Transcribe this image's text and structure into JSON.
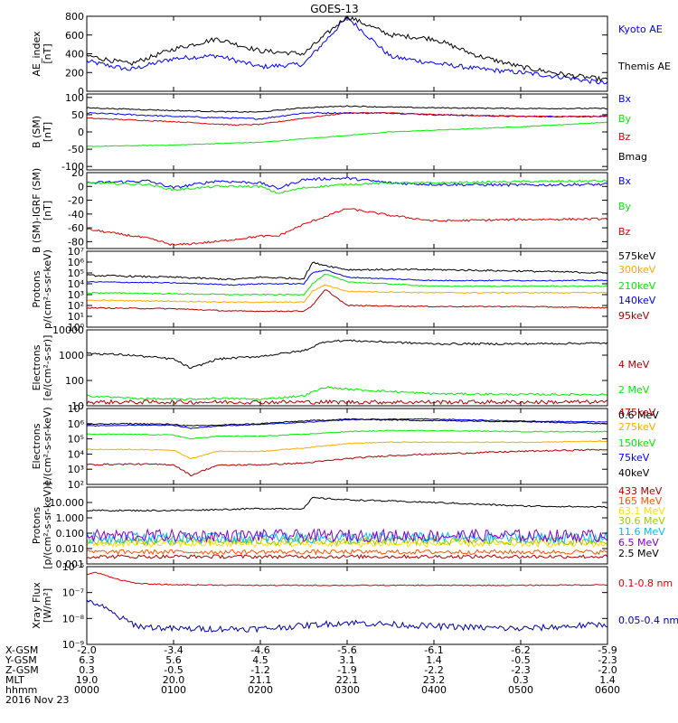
{
  "title": "GOES-13",
  "colors": {
    "black": "#000000",
    "blue": "#0000ff",
    "red": "#dd0000",
    "green": "#00ee00",
    "orange": "#ffaa00",
    "darkred": "#aa0000",
    "cyan": "#00bbff",
    "purple": "#8800cc",
    "gold": "#ffdd00",
    "darkorange": "#ff5500",
    "olive": "#99cc00",
    "navy": "#0000aa"
  },
  "chart_data": [
    {
      "type": "line",
      "scale": "linear",
      "ylim": [
        0,
        800
      ],
      "ylabel": [
        "AE_index",
        "[nT]"
      ],
      "yticks": [
        {
          "v": 0,
          "t": "0"
        },
        {
          "v": 200,
          "t": "200"
        },
        {
          "v": 400,
          "t": "400"
        },
        {
          "v": 600,
          "t": "600"
        },
        {
          "v": 800,
          "t": "800"
        }
      ],
      "x": [
        0,
        0.5,
        1,
        1.5,
        2,
        2.5,
        3,
        3.5,
        4,
        4.5,
        5,
        5.5,
        6
      ],
      "series": [
        {
          "name": "Kyoto AE",
          "color": "#0000ff",
          "values": [
            320,
            230,
            350,
            380,
            260,
            290,
            790,
            370,
            300,
            240,
            200,
            150,
            80
          ],
          "noise": 25
        },
        {
          "name": "Themis AE",
          "color": "#000000",
          "values": [
            380,
            290,
            450,
            560,
            430,
            400,
            800,
            600,
            560,
            380,
            260,
            180,
            120
          ],
          "noise": 25
        }
      ]
    },
    {
      "type": "line",
      "scale": "linear",
      "ylim": [
        -110,
        110
      ],
      "ylabel": [
        "B (SM)",
        "[nT]"
      ],
      "yticks": [
        {
          "v": -100,
          "t": "-100"
        },
        {
          "v": -50,
          "t": "-50"
        },
        {
          "v": 0,
          "t": "0"
        },
        {
          "v": 50,
          "t": "50"
        },
        {
          "v": 100,
          "t": "100"
        }
      ],
      "x": [
        0,
        1,
        1.7,
        2,
        2.5,
        3,
        3.5,
        4,
        5,
        6
      ],
      "series": [
        {
          "name": "Bx",
          "color": "#0000ff",
          "values": [
            55,
            45,
            40,
            38,
            55,
            55,
            55,
            50,
            45,
            45
          ],
          "noise": 2
        },
        {
          "name": "By",
          "color": "#00ee00",
          "values": [
            -42,
            -38,
            -32,
            -30,
            -20,
            -10,
            0,
            5,
            15,
            28
          ],
          "noise": 1
        },
        {
          "name": "Bz",
          "color": "#dd0000",
          "values": [
            40,
            30,
            20,
            22,
            40,
            55,
            55,
            50,
            45,
            45
          ],
          "noise": 1.5
        },
        {
          "name": "Bmag",
          "color": "#000000",
          "values": [
            70,
            62,
            58,
            58,
            70,
            75,
            72,
            70,
            68,
            68
          ],
          "noise": 1.5
        }
      ]
    },
    {
      "type": "line",
      "scale": "linear",
      "ylim": [
        -90,
        20
      ],
      "ylabel": [
        "B (SM)-IGRF (SM)",
        "[nT]"
      ],
      "yticks": [
        {
          "v": -80,
          "t": "-80"
        },
        {
          "v": -60,
          "t": "-60"
        },
        {
          "v": -40,
          "t": "-40"
        },
        {
          "v": -20,
          "t": "-20"
        },
        {
          "v": 0,
          "t": "0"
        },
        {
          "v": 20,
          "t": "20"
        }
      ],
      "x": [
        0,
        0.7,
        1,
        1.5,
        2,
        2.2,
        2.5,
        3,
        3.5,
        4,
        5,
        6
      ],
      "series": [
        {
          "name": "Bx",
          "color": "#0000ff",
          "values": [
            5,
            8,
            -2,
            8,
            5,
            -3,
            10,
            12,
            5,
            3,
            2,
            3
          ],
          "noise": 2
        },
        {
          "name": "By",
          "color": "#00ee00",
          "values": [
            5,
            3,
            -5,
            0,
            0,
            -10,
            -2,
            3,
            5,
            5,
            7,
            8
          ],
          "noise": 1.5
        },
        {
          "name": "Bz",
          "color": "#dd0000",
          "values": [
            -62,
            -75,
            -85,
            -80,
            -72,
            -72,
            -55,
            -32,
            -42,
            -50,
            -48,
            -47
          ],
          "noise": 1.5
        }
      ]
    },
    {
      "type": "line",
      "scale": "log",
      "ylim": [
        1,
        10000000
      ],
      "ylabel": [
        "Protons",
        "p/(cm²-s-sr-keV)"
      ],
      "yticks": [
        {
          "v": 1,
          "t": "10⁰"
        },
        {
          "v": 10,
          "t": "10¹"
        },
        {
          "v": 100,
          "t": "10²"
        },
        {
          "v": 1000,
          "t": "10³"
        },
        {
          "v": 10000,
          "t": "10⁴"
        },
        {
          "v": 100000,
          "t": "10⁵"
        },
        {
          "v": 1000000,
          "t": "10⁶"
        },
        {
          "v": 10000000,
          "t": "10⁷"
        }
      ],
      "x": [
        0,
        1,
        1.7,
        2,
        2.5,
        2.6,
        2.75,
        3,
        4,
        5,
        6
      ],
      "series": [
        {
          "name": "575keV",
          "color": "#000000",
          "values": [
            60000,
            40000,
            25000,
            40000,
            30000,
            900000,
            500000,
            200000,
            200000,
            150000,
            100000
          ],
          "noise": 0.08
        },
        {
          "name": "300keV",
          "color": "#ffaa00",
          "values": [
            300,
            250,
            200,
            200,
            200,
            2000,
            8000,
            2000,
            1500,
            1500,
            1500
          ],
          "noise": 0.05
        },
        {
          "name": "210keV",
          "color": "#00ee00",
          "values": [
            1500,
            1200,
            1000,
            1000,
            1000,
            10000,
            80000,
            15000,
            6000,
            6000,
            6000
          ],
          "noise": 0.05
        },
        {
          "name": "140keV",
          "color": "#0000ff",
          "values": [
            15000,
            12000,
            8000,
            10000,
            10000,
            100000,
            200000,
            40000,
            20000,
            20000,
            20000
          ],
          "noise": 0.05
        },
        {
          "name": "95keV",
          "color": "#aa0000",
          "values": [
            60,
            50,
            30,
            30,
            30,
            100,
            3000,
            100,
            80,
            80,
            60
          ],
          "noise": 0.05
        }
      ]
    },
    {
      "type": "line",
      "scale": "log",
      "ylim": [
        10,
        10000
      ],
      "ylabel": [
        "Electrons",
        "[e/(cm²-s-sr)]"
      ],
      "yticks": [
        {
          "v": 10,
          "t": "10"
        },
        {
          "v": 100,
          "t": "100"
        },
        {
          "v": 1000,
          "t": "1000"
        },
        {
          "v": 10000,
          "t": "10000"
        }
      ],
      "x": [
        0,
        0.5,
        1,
        1.2,
        1.5,
        2,
        2.5,
        2.75,
        3,
        4,
        5,
        6
      ],
      "series": [
        {
          "name": "4 MeV",
          "color": "#aa0000",
          "values": [
            14,
            14,
            14,
            14,
            14,
            14,
            14,
            14,
            14,
            14,
            14,
            14
          ],
          "noise": 0.08
        },
        {
          "name": "2 MeV",
          "color": "#00ee00",
          "values": [
            25,
            20,
            18,
            18,
            20,
            18,
            25,
            55,
            45,
            30,
            28,
            28
          ],
          "noise": 0.04
        },
        {
          "name": "0.6 MeV",
          "color": "#000000",
          "values": [
            1200,
            1000,
            700,
            300,
            700,
            900,
            1500,
            3500,
            3800,
            2800,
            2800,
            3000
          ],
          "noise": 0.04
        }
      ]
    },
    {
      "type": "line",
      "scale": "log",
      "ylim": [
        100,
        10000000
      ],
      "ylabel": [
        "Electrons",
        "e/(cm²-s-sr-keV)"
      ],
      "yticks": [
        {
          "v": 100,
          "t": "10²"
        },
        {
          "v": 1000,
          "t": "10³"
        },
        {
          "v": 10000,
          "t": "10⁴"
        },
        {
          "v": 100000,
          "t": "10⁵"
        },
        {
          "v": 1000000,
          "t": "10⁶"
        },
        {
          "v": 10000000,
          "t": "10⁷"
        }
      ],
      "x": [
        0,
        0.5,
        1,
        1.2,
        1.5,
        2,
        2.5,
        3,
        3.5,
        4,
        5,
        6
      ],
      "series": [
        {
          "name": "475keV",
          "color": "#aa0000",
          "values": [
            2000,
            2200,
            2000,
            400,
            1800,
            2000,
            2500,
            5000,
            8000,
            10000,
            15000,
            20000
          ],
          "noise": 0.05
        },
        {
          "name": "275keV",
          "color": "#ffaa00",
          "values": [
            20000,
            20000,
            18000,
            5000,
            15000,
            15000,
            25000,
            50000,
            60000,
            60000,
            60000,
            70000
          ],
          "noise": 0.03
        },
        {
          "name": "150keV",
          "color": "#00ee00",
          "values": [
            200000,
            200000,
            180000,
            100000,
            150000,
            150000,
            200000,
            300000,
            350000,
            350000,
            300000,
            300000
          ],
          "noise": 0.03
        },
        {
          "name": "75keV",
          "color": "#0000ff",
          "values": [
            700000,
            800000,
            800000,
            500000,
            700000,
            900000,
            1200000,
            1800000,
            2000000,
            2000000,
            1500000,
            1300000
          ],
          "noise": 0.03
        },
        {
          "name": "40keV",
          "color": "#000000",
          "values": [
            900000,
            1000000,
            900000,
            700000,
            800000,
            1000000,
            1500000,
            2000000,
            1800000,
            1600000,
            1400000,
            1000000
          ],
          "noise": 0.04
        }
      ]
    },
    {
      "type": "line",
      "scale": "log",
      "ylim": [
        0.001,
        100
      ],
      "ylabel": [
        "Protons",
        "[p/(cm²-s-sr-keV)]"
      ],
      "yticks": [
        {
          "v": 0.001,
          "t": "0.001"
        },
        {
          "v": 0.01,
          "t": "0.010"
        },
        {
          "v": 0.1,
          "t": "0.100"
        },
        {
          "v": 1,
          "t": "1.000"
        },
        {
          "v": 10,
          "t": "10.000"
        }
      ],
      "x": [
        0,
        1,
        2,
        2.5,
        2.6,
        3,
        4,
        5,
        6
      ],
      "series": [
        {
          "name": "433 MeV",
          "color": "#aa0000",
          "values": [
            0.003,
            0.003,
            0.003,
            0.003,
            0.003,
            0.003,
            0.003,
            0.003,
            0.003
          ],
          "noise": 0.12
        },
        {
          "name": "165 MeV",
          "color": "#ff5500",
          "values": [
            0.006,
            0.006,
            0.006,
            0.006,
            0.006,
            0.006,
            0.006,
            0.006,
            0.006
          ],
          "noise": 0.15
        },
        {
          "name": "63.1 MeV",
          "color": "#ffdd00",
          "values": [
            0.02,
            0.02,
            0.02,
            0.02,
            0.02,
            0.02,
            0.02,
            0.02,
            0.02
          ],
          "noise": 0.2
        },
        {
          "name": "30.6 MeV",
          "color": "#99cc00",
          "values": [
            0.03,
            0.03,
            0.03,
            0.03,
            0.03,
            0.03,
            0.03,
            0.03,
            0.03
          ],
          "noise": 0.25
        },
        {
          "name": "11.6 MeV",
          "color": "#00bbff",
          "values": [
            0.05,
            0.05,
            0.05,
            0.05,
            0.05,
            0.05,
            0.05,
            0.05,
            0.05
          ],
          "noise": 0.35
        },
        {
          "name": "6.5 MeV",
          "color": "#8800cc",
          "values": [
            0.07,
            0.07,
            0.07,
            0.07,
            0.07,
            0.07,
            0.07,
            0.07,
            0.07
          ],
          "noise": 0.4
        },
        {
          "name": "2.5 MeV",
          "color": "#000000",
          "values": [
            3,
            3,
            4,
            4,
            20,
            15,
            10,
            6,
            5
          ],
          "noise": 0.05
        }
      ]
    },
    {
      "type": "line",
      "scale": "log",
      "ylim": [
        1e-09,
        1e-06
      ],
      "ylabel": [
        "Xray Flux",
        "[W/m²]"
      ],
      "yticks": [
        {
          "v": 1e-09,
          "t": "10⁻⁹"
        },
        {
          "v": 1e-08,
          "t": "10⁻⁸"
        },
        {
          "v": 1e-07,
          "t": "10⁻⁷"
        },
        {
          "v": 1e-06,
          "t": "10⁻⁶"
        }
      ],
      "x": [
        0,
        0.1,
        0.4,
        0.6,
        1,
        2,
        3,
        4,
        5,
        6
      ],
      "series": [
        {
          "name": "0.1-0.8 nm",
          "color": "#dd0000",
          "values": [
            5e-07,
            6e-07,
            3e-07,
            2.2e-07,
            2e-07,
            1.9e-07,
            1.9e-07,
            1.9e-07,
            1.9e-07,
            2e-07
          ],
          "noise": 0.02
        },
        {
          "name": "0.05-0.4 nm",
          "color": "#0000aa",
          "values": [
            4e-08,
            4e-08,
            1e-08,
            5e-09,
            4e-09,
            4e-09,
            7e-09,
            5e-09,
            4e-09,
            6e-09
          ],
          "noise": 0.12
        }
      ]
    }
  ],
  "bottom_table": {
    "rows": [
      {
        "label": "X-GSM",
        "values": [
          "-2.0",
          "-3.4",
          "-4.6",
          "-5.6",
          "-6.1",
          "-6.2",
          "-5.9"
        ]
      },
      {
        "label": "Y-GSM",
        "values": [
          "6.3",
          "5.6",
          "4.5",
          "3.1",
          "1.4",
          "-0.5",
          "-2.3"
        ]
      },
      {
        "label": "Z-GSM",
        "values": [
          "0.3",
          "-0.5",
          "-1.2",
          "-1.9",
          "-2.2",
          "-2.3",
          "-2.0"
        ]
      },
      {
        "label": "MLT",
        "values": [
          "19.0",
          "20.0",
          "21.1",
          "22.1",
          "23.2",
          "0.3",
          "1.4"
        ]
      },
      {
        "label": "hhmm",
        "values": [
          "0000",
          "0100",
          "0200",
          "0300",
          "0400",
          "0500",
          "0600"
        ]
      }
    ],
    "date": "2016 Nov 23"
  }
}
